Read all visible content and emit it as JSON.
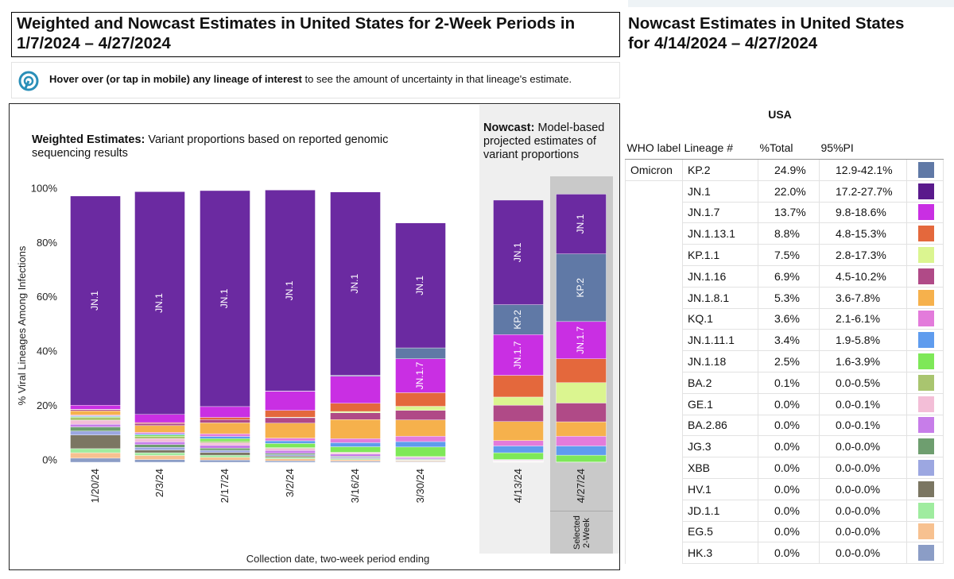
{
  "header": {
    "title": "Weighted and Nowcast Estimates in United States for 2-Week Periods in 1/7/2024 – 4/27/2024",
    "side_title": "Nowcast Estimates in United States for 4/14/2024 – 4/27/2024"
  },
  "info": {
    "bold": "Hover over (or tap in mobile) any lineage of interest",
    "rest": "to see the amount of uncertainty in that lineage's estimate."
  },
  "chart_data": {
    "type": "bar",
    "stacked": true,
    "weighted_title": "Weighted Estimates:",
    "weighted_subtitle": "Variant proportions based on reported genomic sequencing results",
    "nowcast_title": "Nowcast:",
    "nowcast_subtitle": "Model-based projected estimates of variant proportions",
    "selected_label": "Selected 2-Week",
    "ylabel": "% Viral Lineages Among Infections",
    "xlabel": "Collection date, two-week period ending",
    "categories": [
      "1/20/24",
      "2/3/24",
      "2/17/24",
      "3/2/24",
      "3/16/24",
      "3/30/24",
      "4/13/24",
      "4/27/24"
    ],
    "ylim": [
      0,
      100
    ],
    "yticks": [
      {
        "value": 0,
        "label": "0%"
      },
      {
        "value": 20,
        "label": "20%"
      },
      {
        "value": 40,
        "label": "40%"
      },
      {
        "value": 60,
        "label": "60%"
      },
      {
        "value": 80,
        "label": "80%"
      },
      {
        "value": 100,
        "label": "100%"
      }
    ],
    "series": [
      {
        "name": "JN.1",
        "color": "#6b2aa1",
        "values": [
          77,
          82,
          79.5,
          74,
          67.5,
          46,
          38.5,
          22.0
        ]
      },
      {
        "name": "KP.2",
        "color": "#6079a6",
        "values": [
          0,
          0,
          0,
          0.1,
          0.3,
          4,
          11,
          24.9
        ]
      },
      {
        "name": "JN.1.7",
        "color": "#c92fe3",
        "values": [
          1.5,
          3,
          4,
          7,
          10,
          12.5,
          15,
          13.7
        ]
      },
      {
        "name": "JN.1.13.1",
        "color": "#e4683c",
        "values": [
          0.1,
          0.3,
          0.8,
          2.5,
          3,
          5,
          8,
          8.8
        ]
      },
      {
        "name": "KP.1.1",
        "color": "#dbf590",
        "values": [
          0,
          0,
          0,
          0.2,
          0.5,
          1.5,
          3,
          7.5
        ]
      },
      {
        "name": "JN.1.16",
        "color": "#b04a87",
        "values": [
          0.5,
          0.8,
          1.2,
          2,
          2.5,
          3.5,
          6,
          6.9
        ]
      },
      {
        "name": "JN.1.8.1",
        "color": "#f6b14c",
        "values": [
          1.5,
          2.5,
          4,
          5.5,
          7,
          6,
          7,
          5.3
        ]
      },
      {
        "name": "KQ.1",
        "color": "#e37bdb",
        "values": [
          0.3,
          0.5,
          1,
          1,
          1.5,
          2,
          2,
          3.6
        ]
      },
      {
        "name": "JN.1.11.1",
        "color": "#5f9cee",
        "values": [
          0.3,
          0.5,
          0.8,
          1,
          1.5,
          2,
          2.5,
          3.4
        ]
      },
      {
        "name": "JN.1.18",
        "color": "#7ee858",
        "values": [
          0.3,
          0.5,
          1,
          1.5,
          2,
          3.5,
          2.5,
          2.5
        ]
      },
      {
        "name": "BA.2",
        "color": "#a9c56f",
        "values": [
          1,
          0.8,
          0.5,
          0.3,
          0.2,
          0.1,
          0.1,
          0.1
        ]
      },
      {
        "name": "GE.1",
        "color": "#f3bed7",
        "values": [
          1.5,
          1.2,
          1,
          0.8,
          0.5,
          0.3,
          0.2,
          0
        ]
      },
      {
        "name": "BA.2.86",
        "color": "#c77de9",
        "values": [
          1,
          1,
          1,
          1,
          0.8,
          0.5,
          0.2,
          0
        ]
      },
      {
        "name": "JG.3",
        "color": "#6e9e6f",
        "values": [
          1.5,
          1,
          0.8,
          0.5,
          0.3,
          0.2,
          0.1,
          0
        ]
      },
      {
        "name": "XBB",
        "color": "#9ca7e1",
        "values": [
          1.5,
          1,
          0.8,
          0.5,
          0.4,
          0.2,
          0.1,
          0
        ]
      },
      {
        "name": "HV.1",
        "color": "#7b7662",
        "values": [
          5,
          1,
          1,
          0.5,
          0.2,
          0.1,
          0,
          0
        ]
      },
      {
        "name": "JD.1.1",
        "color": "#9fec9f",
        "values": [
          1.5,
          1,
          0.8,
          0.5,
          0.4,
          0.2,
          0.1,
          0
        ]
      },
      {
        "name": "EG.5",
        "color": "#f7c190",
        "values": [
          2,
          1.5,
          1,
          0.8,
          0.5,
          0.3,
          0.1,
          0
        ]
      },
      {
        "name": "HK.3",
        "color": "#8b9dc6",
        "values": [
          1.5,
          1,
          0.8,
          0.5,
          0.4,
          0.2,
          0.1,
          0
        ]
      }
    ]
  },
  "table": {
    "region": "USA",
    "columns": [
      "WHO label",
      "Lineage #",
      "%Total",
      "95%PI"
    ],
    "rows": [
      {
        "who": "Omicron",
        "lineage": "KP.2",
        "total": "24.9%",
        "pi": "12.9-42.1%",
        "color": "#6079a6"
      },
      {
        "lineage": "JN.1",
        "total": "22.0%",
        "pi": "17.2-27.7%",
        "color": "#5a1a8c"
      },
      {
        "lineage": "JN.1.7",
        "total": "13.7%",
        "pi": "9.8-18.6%",
        "color": "#c92fe3"
      },
      {
        "lineage": "JN.1.13.1",
        "total": "8.8%",
        "pi": "4.8-15.3%",
        "color": "#e4683c"
      },
      {
        "lineage": "KP.1.1",
        "total": "7.5%",
        "pi": "2.8-17.3%",
        "color": "#dbf590"
      },
      {
        "lineage": "JN.1.16",
        "total": "6.9%",
        "pi": "4.5-10.2%",
        "color": "#b04a87"
      },
      {
        "lineage": "JN.1.8.1",
        "total": "5.3%",
        "pi": "3.6-7.8%",
        "color": "#f6b14c"
      },
      {
        "lineage": "KQ.1",
        "total": "3.6%",
        "pi": "2.1-6.1%",
        "color": "#e37bdb"
      },
      {
        "lineage": "JN.1.11.1",
        "total": "3.4%",
        "pi": "1.9-5.8%",
        "color": "#5f9cee"
      },
      {
        "lineage": "JN.1.18",
        "total": "2.5%",
        "pi": "1.6-3.9%",
        "color": "#7ee858"
      },
      {
        "lineage": "BA.2",
        "total": "0.1%",
        "pi": "0.0-0.5%",
        "color": "#a9c56f"
      },
      {
        "lineage": "GE.1",
        "total": "0.0%",
        "pi": "0.0-0.1%",
        "color": "#f3bed7"
      },
      {
        "lineage": "BA.2.86",
        "total": "0.0%",
        "pi": "0.0-0.1%",
        "color": "#c77de9"
      },
      {
        "lineage": "JG.3",
        "total": "0.0%",
        "pi": "0.0-0.0%",
        "color": "#6e9e6f"
      },
      {
        "lineage": "XBB",
        "total": "0.0%",
        "pi": "0.0-0.0%",
        "color": "#9ca7e1"
      },
      {
        "lineage": "HV.1",
        "total": "0.0%",
        "pi": "0.0-0.0%",
        "color": "#7b7662"
      },
      {
        "lineage": "JD.1.1",
        "total": "0.0%",
        "pi": "0.0-0.0%",
        "color": "#9fec9f"
      },
      {
        "lineage": "EG.5",
        "total": "0.0%",
        "pi": "0.0-0.0%",
        "color": "#f7c190"
      },
      {
        "lineage": "HK.3",
        "total": "0.0%",
        "pi": "0.0-0.0%",
        "color": "#8b9dc6"
      }
    ]
  }
}
